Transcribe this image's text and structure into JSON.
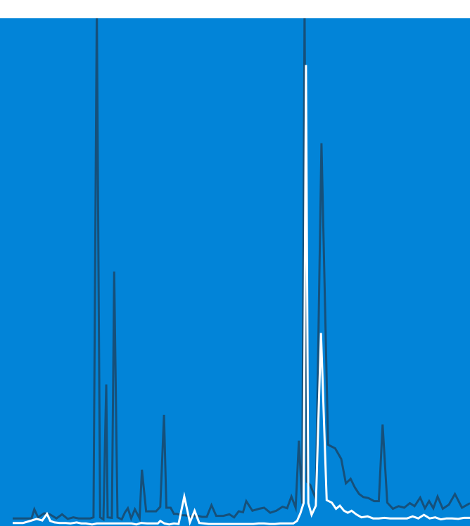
{
  "chart_data": {
    "type": "line",
    "title": "",
    "xlabel": "",
    "ylabel": "",
    "grid": false,
    "legend": "none",
    "xlim": [
      0,
      100
    ],
    "ylim": [
      0,
      100
    ],
    "colors": {
      "page_background": "#ffffff",
      "plot_background": "#0284d8",
      "series_dark": "#16507a",
      "series_light": "#ffffff"
    },
    "series": [
      {
        "color": "#16507a",
        "x": [
          2.7,
          6.7,
          7.3,
          8.1,
          9.4,
          10.6,
          12.0,
          13.2,
          14.4,
          15.6,
          16.7,
          17.9,
          19.2,
          19.9,
          20.6,
          21.3,
          22.0,
          22.6,
          22.9,
          23.8,
          24.3,
          25.0,
          25.9,
          26.6,
          27.2,
          27.9,
          28.7,
          29.7,
          30.2,
          31.1,
          32.0,
          33.2,
          34.1,
          34.9,
          35.4,
          36.3,
          37.0,
          37.7,
          38.5,
          39.4,
          40.3,
          41.2,
          42.1,
          43.0,
          44.0,
          45.0,
          46.0,
          47.5,
          48.8,
          49.8,
          50.8,
          51.7,
          52.4,
          53.7,
          55.1,
          56.2,
          57.5,
          58.8,
          60.1,
          61.1,
          62.0,
          62.9,
          63.6,
          64.3,
          64.8,
          65.3,
          66.0,
          67.2,
          68.4,
          69.8,
          71.3,
          72.6,
          73.6,
          74.6,
          75.5,
          76.4,
          77.3,
          78.4,
          79.6,
          80.6,
          81.4,
          82.4,
          83.6,
          84.8,
          86.0,
          87.2,
          88.2,
          89.4,
          90.4,
          91.3,
          92.2,
          93.1,
          94.2,
          95.5,
          96.8,
          98.3,
          100.0
        ],
        "y": [
          1.5,
          1.5,
          3.3,
          1.7,
          2.5,
          2.3,
          1.5,
          2.3,
          1.4,
          1.7,
          1.5,
          1.5,
          1.5,
          1.7,
          102.0,
          1.7,
          1.3,
          27.9,
          1.7,
          1.6,
          50.1,
          1.7,
          1.3,
          2.7,
          3.5,
          1.5,
          3.3,
          1.5,
          11.1,
          2.9,
          2.9,
          2.9,
          3.8,
          21.9,
          3.6,
          3.6,
          2.4,
          2.4,
          2.1,
          2.1,
          1.9,
          1.9,
          2.0,
          1.8,
          1.8,
          4.1,
          2.0,
          2.0,
          2.3,
          1.7,
          2.9,
          2.7,
          4.9,
          3.0,
          3.4,
          3.6,
          2.6,
          3.0,
          3.8,
          3.5,
          5.8,
          3.6,
          16.8,
          4.4,
          102.0,
          8.7,
          8.1,
          5.3,
          75.4,
          16.0,
          15.3,
          13.2,
          8.4,
          9.3,
          7.6,
          6.3,
          5.7,
          5.5,
          4.9,
          4.9,
          20.0,
          4.6,
          3.4,
          3.9,
          3.6,
          4.5,
          3.9,
          5.6,
          3.5,
          4.9,
          3.5,
          5.8,
          3.4,
          4.2,
          6.3,
          3.6,
          4.5
        ]
      },
      {
        "color": "#ffffff",
        "x": [
          2.7,
          4.9,
          6.4,
          7.8,
          9.0,
          10.0,
          10.7,
          11.6,
          12.7,
          14.0,
          15.0,
          16.3,
          17.3,
          18.3,
          19.6,
          20.6,
          21.3,
          22.6,
          23.6,
          24.6,
          25.5,
          26.2,
          27.0,
          28.0,
          29.0,
          30.0,
          31.3,
          32.6,
          33.6,
          34.1,
          35.0,
          36.0,
          37.0,
          38.0,
          39.2,
          40.4,
          41.4,
          42.4,
          43.4,
          44.4,
          45.4,
          46.4,
          47.6,
          48.7,
          49.6,
          50.5,
          51.4,
          52.7,
          53.9,
          55.0,
          56.2,
          57.3,
          58.5,
          59.6,
          60.6,
          61.5,
          62.4,
          63.2,
          63.9,
          64.6,
          65.1,
          65.6,
          66.3,
          67.2,
          68.3,
          69.5,
          70.6,
          71.5,
          72.3,
          73.2,
          74.0,
          74.8,
          75.8,
          76.9,
          78.2,
          79.4,
          80.6,
          81.8,
          83.0,
          84.2,
          85.4,
          86.6,
          87.8,
          89.0,
          90.2,
          91.4,
          92.6,
          93.8,
          95.0,
          96.2,
          97.5,
          98.7,
          100.0
        ],
        "y": [
          0.6,
          0.6,
          1.0,
          1.4,
          1.1,
          2.4,
          1.0,
          0.7,
          0.6,
          0.6,
          0.5,
          0.7,
          0.5,
          0.5,
          0.3,
          0.5,
          0.5,
          0.5,
          0.5,
          0.5,
          0.5,
          0.5,
          0.5,
          0.5,
          0.3,
          0.6,
          0.5,
          0.5,
          0.5,
          1.0,
          0.5,
          0.3,
          0.5,
          0.4,
          5.8,
          0.7,
          3.0,
          0.6,
          0.5,
          0.4,
          0.4,
          0.4,
          0.4,
          0.4,
          0.4,
          0.4,
          0.4,
          0.4,
          0.4,
          0.5,
          0.5,
          0.4,
          0.4,
          0.5,
          0.5,
          0.5,
          0.5,
          1.0,
          2.5,
          4.5,
          90.8,
          4.5,
          2.2,
          4.0,
          38.0,
          5.1,
          4.6,
          3.4,
          4.0,
          3.0,
          2.6,
          3.0,
          2.3,
          1.7,
          1.9,
          1.5,
          1.5,
          1.6,
          1.5,
          1.5,
          1.5,
          1.5,
          1.9,
          1.5,
          2.2,
          1.5,
          1.7,
          1.3,
          1.5,
          1.5,
          1.4,
          1.6,
          1.6
        ]
      }
    ]
  }
}
